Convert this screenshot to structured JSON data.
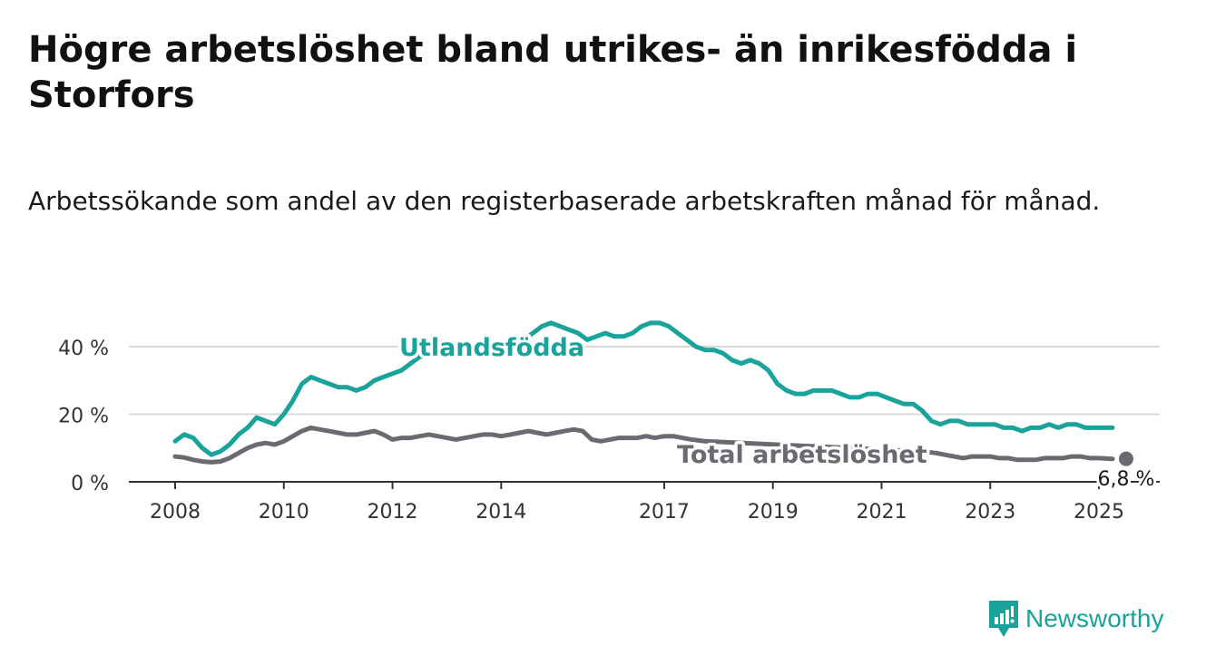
{
  "title": "Högre arbetslöshet bland utrikes- än inrikesfödda i Storfors",
  "subtitle": "Arbetssökande som andel av den registerbaserade arbetskraften månad för månad.",
  "brand": {
    "name": "Newsworthy",
    "color": "#19a39a"
  },
  "chart_data": {
    "type": "line",
    "title": "Högre arbetslöshet bland utrikes- än inrikesfödda i Storfors",
    "subtitle": "Arbetssökande som andel av den registerbaserade arbetskraften månad för månad.",
    "xlabel": "",
    "ylabel": "",
    "x_ticks": [
      "2008",
      "2010",
      "2012",
      "2014",
      "2017",
      "2019",
      "2021",
      "2023",
      "2025"
    ],
    "y_ticks": [
      "0 %",
      "20 %",
      "40 %"
    ],
    "ylim": [
      0,
      50
    ],
    "xlim": [
      "2008-01",
      "2025-04"
    ],
    "grid": true,
    "legend": "inline labels",
    "end_label": "6,8 %",
    "series": [
      {
        "name": "Utlandsfödda",
        "color": "#19a39a",
        "points": [
          [
            "2008-01",
            12
          ],
          [
            "2008-03",
            14
          ],
          [
            "2008-05",
            13
          ],
          [
            "2008-07",
            10
          ],
          [
            "2008-09",
            8
          ],
          [
            "2008-11",
            9
          ],
          [
            "2009-01",
            11
          ],
          [
            "2009-03",
            14
          ],
          [
            "2009-05",
            16
          ],
          [
            "2009-07",
            19
          ],
          [
            "2009-09",
            18
          ],
          [
            "2009-11",
            17
          ],
          [
            "2010-01",
            20
          ],
          [
            "2010-03",
            24
          ],
          [
            "2010-05",
            29
          ],
          [
            "2010-07",
            31
          ],
          [
            "2010-09",
            30
          ],
          [
            "2010-11",
            29
          ],
          [
            "2011-01",
            28
          ],
          [
            "2011-03",
            28
          ],
          [
            "2011-05",
            27
          ],
          [
            "2011-07",
            28
          ],
          [
            "2011-09",
            30
          ],
          [
            "2011-11",
            31
          ],
          [
            "2012-01",
            32
          ],
          [
            "2012-03",
            33
          ],
          [
            "2012-05",
            35
          ],
          [
            "2012-07",
            37
          ],
          [
            "2014-06",
            42
          ],
          [
            "2014-08",
            44
          ],
          [
            "2014-10",
            46
          ],
          [
            "2014-12",
            47
          ],
          [
            "2015-02",
            46
          ],
          [
            "2015-04",
            45
          ],
          [
            "2015-06",
            44
          ],
          [
            "2015-08",
            42
          ],
          [
            "2015-10",
            43
          ],
          [
            "2015-12",
            44
          ],
          [
            "2016-02",
            43
          ],
          [
            "2016-04",
            43
          ],
          [
            "2016-06",
            44
          ],
          [
            "2016-08",
            46
          ],
          [
            "2016-10",
            47
          ],
          [
            "2016-12",
            47
          ],
          [
            "2017-02",
            46
          ],
          [
            "2017-04",
            44
          ],
          [
            "2017-06",
            42
          ],
          [
            "2017-08",
            40
          ],
          [
            "2017-10",
            39
          ],
          [
            "2017-12",
            39
          ],
          [
            "2018-02",
            38
          ],
          [
            "2018-04",
            36
          ],
          [
            "2018-06",
            35
          ],
          [
            "2018-08",
            36
          ],
          [
            "2018-10",
            35
          ],
          [
            "2018-12",
            33
          ],
          [
            "2019-02",
            29
          ],
          [
            "2019-04",
            27
          ],
          [
            "2019-06",
            26
          ],
          [
            "2019-08",
            26
          ],
          [
            "2019-10",
            27
          ],
          [
            "2019-12",
            27
          ],
          [
            "2020-02",
            27
          ],
          [
            "2020-04",
            26
          ],
          [
            "2020-06",
            25
          ],
          [
            "2020-08",
            25
          ],
          [
            "2020-10",
            26
          ],
          [
            "2020-12",
            26
          ],
          [
            "2021-02",
            25
          ],
          [
            "2021-04",
            24
          ],
          [
            "2021-06",
            23
          ],
          [
            "2021-08",
            23
          ],
          [
            "2021-10",
            21
          ],
          [
            "2021-12",
            18
          ],
          [
            "2022-02",
            17
          ],
          [
            "2022-04",
            18
          ],
          [
            "2022-06",
            18
          ],
          [
            "2022-08",
            17
          ],
          [
            "2022-10",
            17
          ],
          [
            "2022-12",
            17
          ],
          [
            "2023-02",
            17
          ],
          [
            "2023-04",
            16
          ],
          [
            "2023-06",
            16
          ],
          [
            "2023-08",
            15
          ],
          [
            "2023-10",
            16
          ],
          [
            "2023-12",
            16
          ],
          [
            "2024-02",
            17
          ],
          [
            "2024-04",
            16
          ],
          [
            "2024-06",
            17
          ],
          [
            "2024-08",
            17
          ],
          [
            "2024-10",
            16
          ],
          [
            "2024-12",
            16
          ],
          [
            "2025-02",
            16
          ],
          [
            "2025-04",
            16
          ]
        ]
      },
      {
        "name": "Total arbetslöshet",
        "color": "#6b6a70",
        "points": [
          [
            "2008-01",
            7.5
          ],
          [
            "2008-03",
            7.2
          ],
          [
            "2008-05",
            6.5
          ],
          [
            "2008-07",
            6.0
          ],
          [
            "2008-09",
            5.8
          ],
          [
            "2008-11",
            6.0
          ],
          [
            "2009-01",
            7.0
          ],
          [
            "2009-03",
            8.5
          ],
          [
            "2009-05",
            10.0
          ],
          [
            "2009-07",
            11.0
          ],
          [
            "2009-09",
            11.5
          ],
          [
            "2009-11",
            11.0
          ],
          [
            "2010-01",
            12.0
          ],
          [
            "2010-03",
            13.5
          ],
          [
            "2010-05",
            15.0
          ],
          [
            "2010-07",
            16.0
          ],
          [
            "2010-09",
            15.5
          ],
          [
            "2010-11",
            15.0
          ],
          [
            "2011-01",
            14.5
          ],
          [
            "2011-03",
            14.0
          ],
          [
            "2011-05",
            14.0
          ],
          [
            "2011-07",
            14.5
          ],
          [
            "2011-09",
            15.0
          ],
          [
            "2011-11",
            14.0
          ],
          [
            "2012-01",
            12.5
          ],
          [
            "2012-03",
            13.0
          ],
          [
            "2012-05",
            13.0
          ],
          [
            "2012-07",
            13.5
          ],
          [
            "2012-09",
            14.0
          ],
          [
            "2012-11",
            13.5
          ],
          [
            "2013-01",
            13.0
          ],
          [
            "2013-03",
            12.5
          ],
          [
            "2013-05",
            13.0
          ],
          [
            "2013-07",
            13.5
          ],
          [
            "2013-09",
            14.0
          ],
          [
            "2013-11",
            14.0
          ],
          [
            "2014-01",
            13.5
          ],
          [
            "2014-03",
            14.0
          ],
          [
            "2014-05",
            14.5
          ],
          [
            "2014-07",
            15.0
          ],
          [
            "2014-09",
            14.5
          ],
          [
            "2014-11",
            14.0
          ],
          [
            "2015-01",
            14.5
          ],
          [
            "2015-03",
            15.0
          ],
          [
            "2015-05",
            15.5
          ],
          [
            "2015-07",
            15.0
          ],
          [
            "2015-09",
            12.5
          ],
          [
            "2015-11",
            12.0
          ],
          [
            "2016-01",
            12.5
          ],
          [
            "2016-03",
            13.0
          ],
          [
            "2016-05",
            13.0
          ],
          [
            "2016-07",
            13.0
          ],
          [
            "2016-09",
            13.5
          ],
          [
            "2016-11",
            13.0
          ],
          [
            "2017-01",
            13.5
          ],
          [
            "2017-03",
            13.5
          ],
          [
            "2017-05",
            13.0
          ],
          [
            "2017-07",
            12.5
          ],
          [
            "2017-10",
            12.0
          ],
          [
            "2021-10",
            9.0
          ],
          [
            "2022-01",
            8.5
          ],
          [
            "2022-03",
            8.0
          ],
          [
            "2022-05",
            7.5
          ],
          [
            "2022-07",
            7.0
          ],
          [
            "2022-09",
            7.5
          ],
          [
            "2022-11",
            7.5
          ],
          [
            "2023-01",
            7.5
          ],
          [
            "2023-03",
            7.0
          ],
          [
            "2023-05",
            7.0
          ],
          [
            "2023-07",
            6.5
          ],
          [
            "2023-09",
            6.5
          ],
          [
            "2023-11",
            6.5
          ],
          [
            "2024-01",
            7.0
          ],
          [
            "2024-03",
            7.0
          ],
          [
            "2024-05",
            7.0
          ],
          [
            "2024-07",
            7.5
          ],
          [
            "2024-09",
            7.5
          ],
          [
            "2024-11",
            7.0
          ],
          [
            "2025-01",
            7.0
          ],
          [
            "2025-04",
            6.8
          ]
        ]
      }
    ]
  }
}
